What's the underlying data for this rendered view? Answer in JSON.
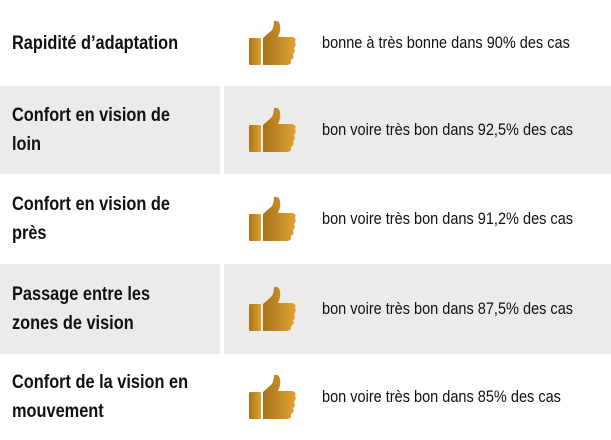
{
  "accent_color": "#c8901e",
  "icon": "thumbs-up-icon",
  "rows": [
    {
      "label": "Rapidité d’adaptation",
      "description": "bonne à très bonne dans 90% des cas",
      "percent": 90
    },
    {
      "label": "Confort en vision de loin",
      "description": "bon voire très bon dans 92,5% des cas",
      "percent": 92.5
    },
    {
      "label": "Confort en vision de près",
      "description": "bon voire très bon dans 91,2% des cas",
      "percent": 91.2
    },
    {
      "label": "Passage entre les zones de vision",
      "description": "bon voire très bon dans 87,5% des cas",
      "percent": 87.5
    },
    {
      "label": "Confort de la vision en mouvement",
      "description": "bon voire très bon dans 85% des cas",
      "percent": 85
    }
  ]
}
